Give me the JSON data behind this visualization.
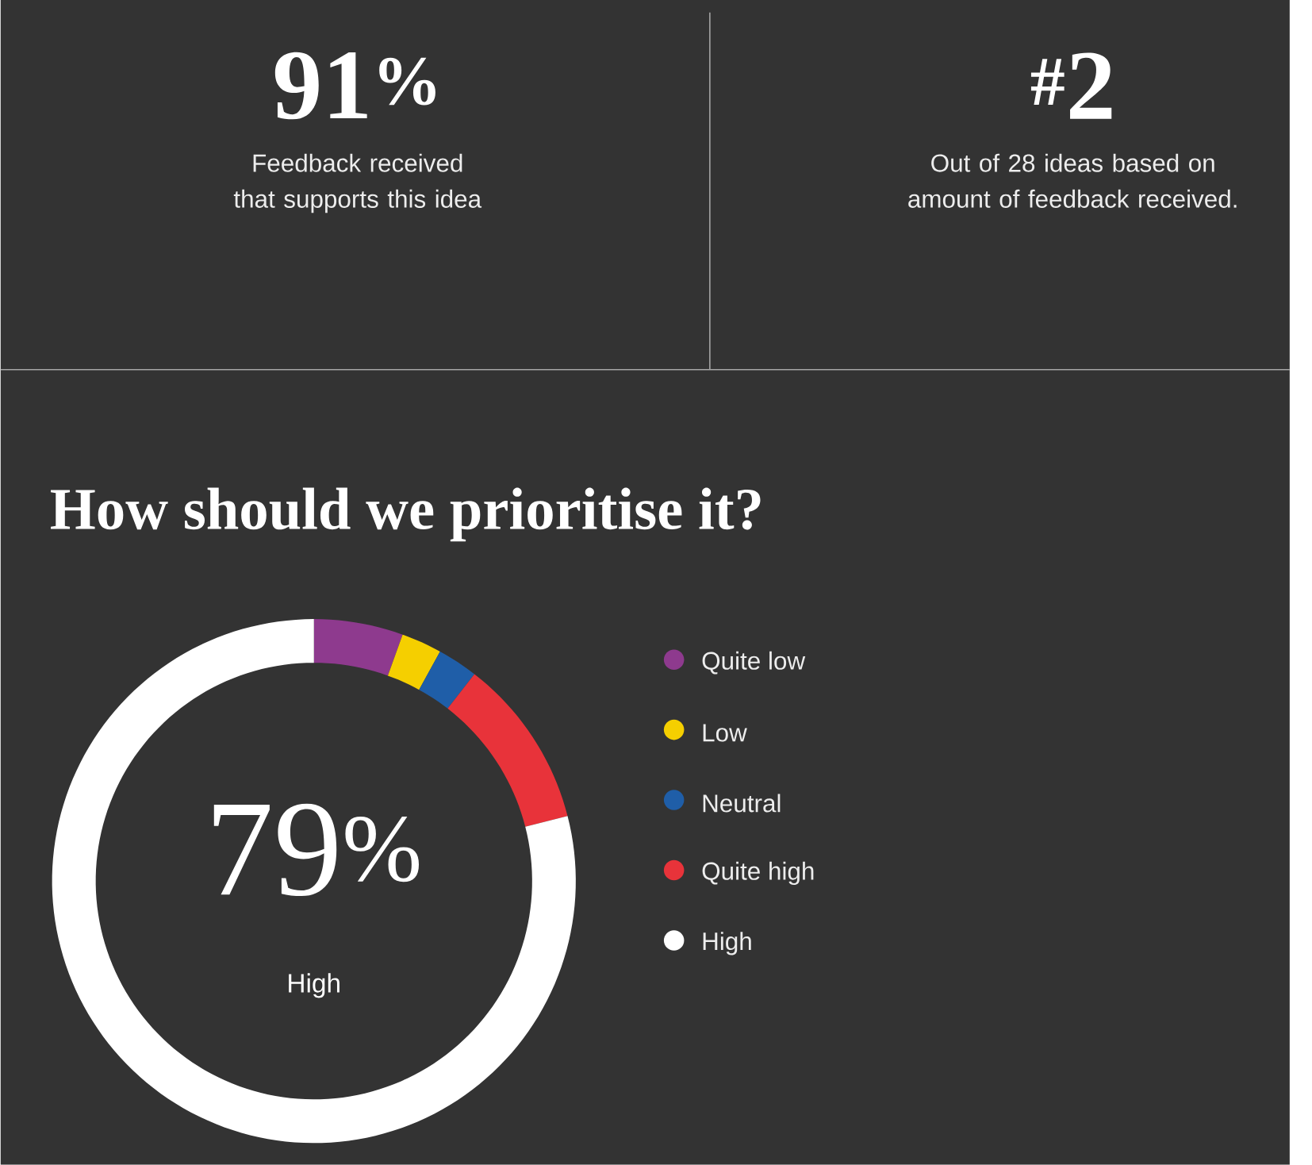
{
  "chart_data": [
    {
      "type": "other",
      "title": "91$^{%}$",
      "subtitle": "Feedback received that supports this idea"
    },
    {
      "type": "other",
      "title": "$^{#}$2",
      "subtitle": "Out of 28 ideas based on amount of feedback received."
    },
    {
      "type": "donut",
      "title": "How should we prioritise it?",
      "categories": [
        "Quite low",
        "Low",
        "Neutral",
        "Quite high",
        "High"
      ],
      "values": [
        5.5,
        2.5,
        2.5,
        10.5,
        79
      ],
      "colors": [
        "#8e3a8e",
        "#f5cf00",
        "#1f5ea8",
        "#e8333a",
        "#ffffff"
      ],
      "legend": "right",
      "annotations": [
        "79$^{%}$",
        "High"
      ]
    }
  ]
}
